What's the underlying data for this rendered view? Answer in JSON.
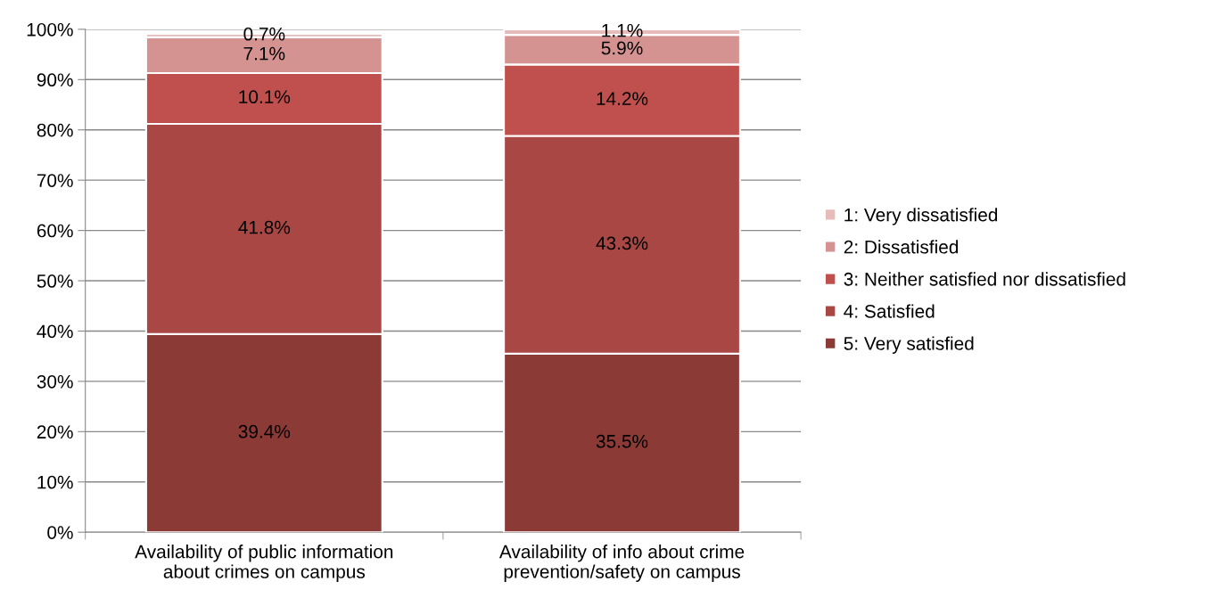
{
  "chart_data": {
    "type": "bar",
    "stacked": true,
    "categories": [
      "Availability of public information\nabout crimes on campus",
      "Availability of info about crime\nprevention/safety on campus"
    ],
    "series": [
      {
        "name": "5: Very satisfied",
        "color": "#8b3a36",
        "values": [
          39.4,
          35.5
        ],
        "value_labels": [
          "39.4%",
          "35.5%"
        ]
      },
      {
        "name": "4: Satisfied",
        "color": "#a84744",
        "values": [
          41.8,
          43.3
        ],
        "value_labels": [
          "41.8%",
          "43.3%"
        ]
      },
      {
        "name": "3: Neither satisfied nor dissatisfied",
        "color": "#c0504d",
        "values": [
          10.1,
          14.2
        ],
        "value_labels": [
          "10.1%",
          "14.2%"
        ]
      },
      {
        "name": "2: Dissatisfied",
        "color": "#d49290",
        "values": [
          7.1,
          5.9
        ],
        "value_labels": [
          "7.1%",
          "5.9%"
        ]
      },
      {
        "name": "1: Very dissatisfied",
        "color": "#e6bcbb",
        "values": [
          0.7,
          1.1
        ],
        "value_labels": [
          "0.7%",
          "1.1%"
        ]
      }
    ],
    "ylim": [
      0,
      100
    ],
    "yticks": [
      {
        "value": 0,
        "label": "0%"
      },
      {
        "value": 10,
        "label": "10%"
      },
      {
        "value": 20,
        "label": "20%"
      },
      {
        "value": 30,
        "label": "30%"
      },
      {
        "value": 40,
        "label": "40%"
      },
      {
        "value": 50,
        "label": "50%"
      },
      {
        "value": 60,
        "label": "60%"
      },
      {
        "value": 70,
        "label": "70%"
      },
      {
        "value": 80,
        "label": "80%"
      },
      {
        "value": 90,
        "label": "90%"
      },
      {
        "value": 100,
        "label": "100%"
      }
    ],
    "grid": "y",
    "legend": "right"
  }
}
